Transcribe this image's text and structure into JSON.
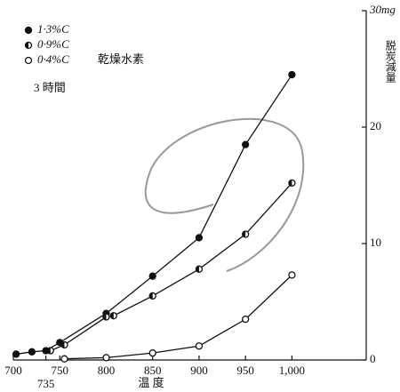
{
  "chart_data": {
    "type": "line",
    "x_label": "温 度",
    "y_label": "脱炭減量",
    "annotations": [
      "乾燥水素",
      "3 時間"
    ],
    "xlim": [
      700,
      1080
    ],
    "ylim": [
      0,
      30
    ],
    "xticks": [
      700,
      735,
      750,
      800,
      850,
      900,
      950,
      {
        "value": 1000,
        "label": "1,000"
      }
    ],
    "yticks": [
      0,
      10,
      20,
      {
        "value": 30,
        "label": "30mg"
      }
    ],
    "series": [
      {
        "name": "1·3%C",
        "color": "#111111",
        "marker": "filled",
        "x": [
          703,
          720,
          735,
          750,
          800,
          850,
          900,
          950,
          1000
        ],
        "values": [
          0.5,
          0.7,
          0.8,
          1.5,
          4,
          7.2,
          10.5,
          18.5,
          24.5
        ]
      },
      {
        "name": "0·9%C",
        "color": "#111111",
        "marker": "half",
        "x": [
          740,
          755,
          800,
          808,
          850,
          900,
          950,
          1000
        ],
        "values": [
          0.8,
          1.3,
          3.7,
          3.8,
          5.5,
          7.8,
          10.8,
          15.2
        ]
      },
      {
        "name": "0·4%C",
        "color": "#111111",
        "marker": "open",
        "x": [
          755,
          800,
          850,
          900,
          950,
          1000
        ],
        "values": [
          0.1,
          0.2,
          0.6,
          1.2,
          3.5,
          7.3
        ]
      }
    ]
  }
}
